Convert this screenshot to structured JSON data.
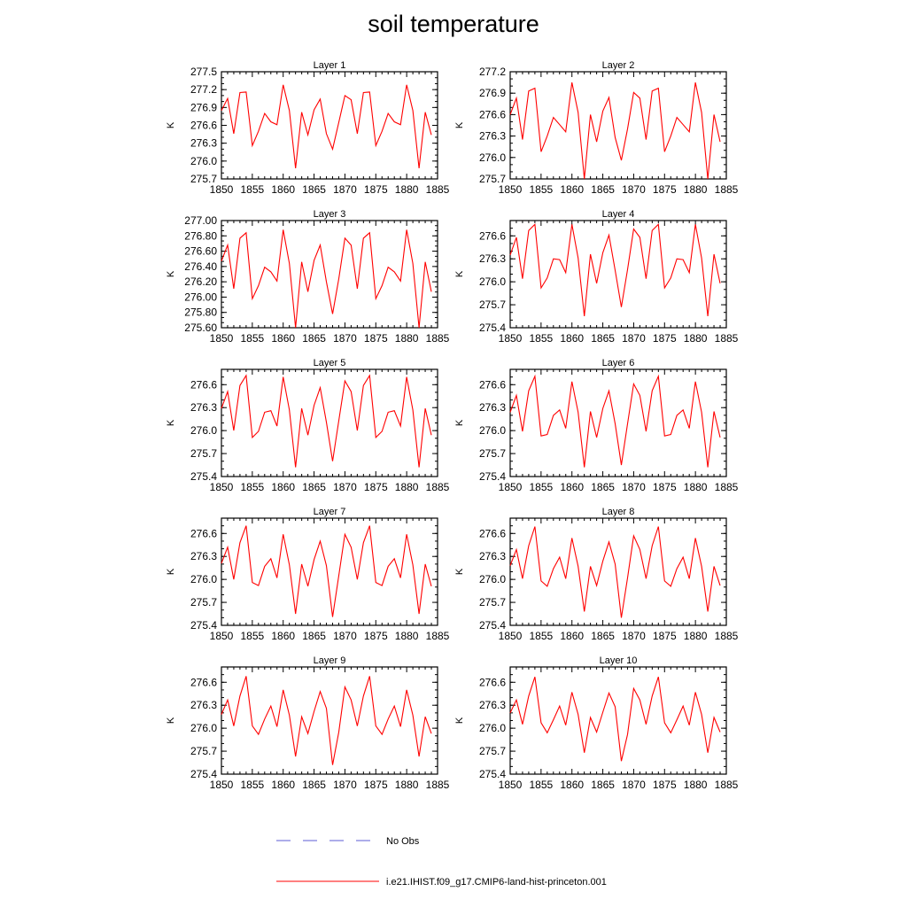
{
  "title": "soil temperature",
  "legend": {
    "items": [
      {
        "label": "No Obs",
        "color": "#5b5bd6",
        "style": "dashed"
      },
      {
        "label": "i.e21.IHIST.f09_g17.CMIP6-land-hist-princeton.001",
        "color": "#ff0000",
        "style": "solid"
      }
    ]
  },
  "chart_data": [
    {
      "type": "line",
      "title": "Layer 1",
      "ylabel": "K",
      "xlim": [
        1850,
        1885
      ],
      "ylim": [
        275.7,
        277.5
      ],
      "yticks": [
        "275.7",
        "276.0",
        "276.3",
        "276.6",
        "276.9",
        "277.2",
        "277.5"
      ],
      "xticks": [
        "1850",
        "1855",
        "1860",
        "1865",
        "1870",
        "1875",
        "1880",
        "1885"
      ],
      "series": [
        {
          "color": "#ff0000",
          "x": [
            1850,
            1851,
            1852,
            1853,
            1854,
            1855,
            1856,
            1857,
            1858,
            1859,
            1860,
            1861,
            1862,
            1863,
            1864,
            1865,
            1866,
            1867,
            1868,
            1869,
            1870,
            1871,
            1872,
            1873,
            1874,
            1875,
            1876,
            1877,
            1878,
            1879,
            1880,
            1881,
            1882,
            1883,
            1884
          ],
          "values": [
            276.85,
            277.05,
            276.46,
            277.15,
            277.16,
            276.26,
            276.5,
            276.8,
            276.66,
            276.61,
            277.28,
            276.85,
            275.88,
            276.82,
            276.44,
            276.86,
            277.04,
            276.46,
            276.2,
            276.65,
            277.1,
            277.03,
            276.46,
            277.15,
            277.16,
            276.26,
            276.5,
            276.8,
            276.66,
            276.61,
            277.28,
            276.85,
            275.88,
            276.82,
            276.44
          ]
        }
      ]
    },
    {
      "type": "line",
      "title": "Layer 2",
      "ylabel": "K",
      "xlim": [
        1850,
        1885
      ],
      "ylim": [
        275.7,
        277.2
      ],
      "yticks": [
        "275.7",
        "276.0",
        "276.3",
        "276.6",
        "276.9",
        "277.2"
      ],
      "xticks": [
        "1850",
        "1855",
        "1860",
        "1865",
        "1870",
        "1875",
        "1880",
        "1885"
      ],
      "series": [
        {
          "color": "#ff0000",
          "x": [
            1850,
            1851,
            1852,
            1853,
            1854,
            1855,
            1856,
            1857,
            1858,
            1859,
            1860,
            1861,
            1862,
            1863,
            1864,
            1865,
            1866,
            1867,
            1868,
            1869,
            1870,
            1871,
            1872,
            1873,
            1874,
            1875,
            1876,
            1877,
            1878,
            1879,
            1880,
            1881,
            1882,
            1883,
            1884
          ],
          "values": [
            276.6,
            276.83,
            276.25,
            276.93,
            276.97,
            276.08,
            276.3,
            276.56,
            276.46,
            276.36,
            277.05,
            276.63,
            275.7,
            276.6,
            276.22,
            276.65,
            276.84,
            276.28,
            275.96,
            276.4,
            276.91,
            276.83,
            276.25,
            276.93,
            276.97,
            276.08,
            276.3,
            276.56,
            276.46,
            276.36,
            277.05,
            276.63,
            275.7,
            276.6,
            276.22
          ]
        }
      ]
    },
    {
      "type": "line",
      "title": "Layer 3",
      "ylabel": "K",
      "xlim": [
        1850,
        1885
      ],
      "ylim": [
        275.6,
        277.0
      ],
      "yticks": [
        "275.60",
        "275.80",
        "276.00",
        "276.20",
        "276.40",
        "276.60",
        "276.80",
        "277.00"
      ],
      "xticks": [
        "1850",
        "1855",
        "1860",
        "1865",
        "1870",
        "1875",
        "1880",
        "1885"
      ],
      "series": [
        {
          "color": "#ff0000",
          "x": [
            1850,
            1851,
            1852,
            1853,
            1854,
            1855,
            1856,
            1857,
            1858,
            1859,
            1860,
            1861,
            1862,
            1863,
            1864,
            1865,
            1866,
            1867,
            1868,
            1869,
            1870,
            1871,
            1872,
            1873,
            1874,
            1875,
            1876,
            1877,
            1878,
            1879,
            1880,
            1881,
            1882,
            1883,
            1884
          ],
          "values": [
            276.47,
            276.68,
            276.11,
            276.77,
            276.84,
            275.98,
            276.15,
            276.39,
            276.33,
            276.21,
            276.88,
            276.44,
            275.6,
            276.46,
            276.07,
            276.48,
            276.68,
            276.2,
            275.78,
            276.24,
            276.77,
            276.68,
            276.11,
            276.77,
            276.84,
            275.98,
            276.15,
            276.39,
            276.33,
            276.21,
            276.88,
            276.44,
            275.6,
            276.46,
            276.07
          ]
        }
      ]
    },
    {
      "type": "line",
      "title": "Layer 4",
      "ylabel": "K",
      "xlim": [
        1850,
        1885
      ],
      "ylim": [
        275.4,
        276.8
      ],
      "yticks": [
        "275.4",
        "275.7",
        "276.0",
        "276.3",
        "276.6"
      ],
      "xticks": [
        "1850",
        "1855",
        "1860",
        "1865",
        "1870",
        "1875",
        "1880",
        "1885"
      ],
      "series": [
        {
          "color": "#ff0000",
          "x": [
            1850,
            1851,
            1852,
            1853,
            1854,
            1855,
            1856,
            1857,
            1858,
            1859,
            1860,
            1861,
            1862,
            1863,
            1864,
            1865,
            1866,
            1867,
            1868,
            1869,
            1870,
            1871,
            1872,
            1873,
            1874,
            1875,
            1876,
            1877,
            1878,
            1879,
            1880,
            1881,
            1882,
            1883,
            1884
          ],
          "values": [
            276.35,
            276.58,
            276.04,
            276.67,
            276.75,
            275.92,
            276.05,
            276.3,
            276.29,
            276.12,
            276.75,
            276.31,
            275.55,
            276.36,
            275.98,
            276.38,
            276.61,
            276.15,
            275.67,
            276.16,
            276.69,
            276.58,
            276.04,
            276.67,
            276.75,
            275.92,
            276.05,
            276.3,
            276.29,
            276.12,
            276.75,
            276.31,
            275.55,
            276.36,
            275.98
          ]
        }
      ]
    },
    {
      "type": "line",
      "title": "Layer 5",
      "ylabel": "K",
      "xlim": [
        1850,
        1885
      ],
      "ylim": [
        275.4,
        276.8
      ],
      "yticks": [
        "275.4",
        "275.7",
        "276.0",
        "276.3",
        "276.6"
      ],
      "xticks": [
        "1850",
        "1855",
        "1860",
        "1865",
        "1870",
        "1875",
        "1880",
        "1885"
      ],
      "series": [
        {
          "color": "#ff0000",
          "x": [
            1850,
            1851,
            1852,
            1853,
            1854,
            1855,
            1856,
            1857,
            1858,
            1859,
            1860,
            1861,
            1862,
            1863,
            1864,
            1865,
            1866,
            1867,
            1868,
            1869,
            1870,
            1871,
            1872,
            1873,
            1874,
            1875,
            1876,
            1877,
            1878,
            1879,
            1880,
            1881,
            1882,
            1883,
            1884
          ],
          "values": [
            276.29,
            276.51,
            276.0,
            276.59,
            276.72,
            275.91,
            275.99,
            276.24,
            276.26,
            276.06,
            276.7,
            276.27,
            275.52,
            276.29,
            275.94,
            276.33,
            276.56,
            276.11,
            275.6,
            276.13,
            276.65,
            276.51,
            276.0,
            276.59,
            276.72,
            275.91,
            275.99,
            276.24,
            276.26,
            276.06,
            276.7,
            276.27,
            275.52,
            276.29,
            275.94
          ]
        }
      ]
    },
    {
      "type": "line",
      "title": "Layer 6",
      "ylabel": "K",
      "xlim": [
        1850,
        1885
      ],
      "ylim": [
        275.4,
        276.8
      ],
      "yticks": [
        "275.4",
        "275.7",
        "276.0",
        "276.3",
        "276.6"
      ],
      "xticks": [
        "1850",
        "1855",
        "1860",
        "1865",
        "1870",
        "1875",
        "1880",
        "1885"
      ],
      "series": [
        {
          "color": "#ff0000",
          "x": [
            1850,
            1851,
            1852,
            1853,
            1854,
            1855,
            1856,
            1857,
            1858,
            1859,
            1860,
            1861,
            1862,
            1863,
            1864,
            1865,
            1866,
            1867,
            1868,
            1869,
            1870,
            1871,
            1872,
            1873,
            1874,
            1875,
            1876,
            1877,
            1878,
            1879,
            1880,
            1881,
            1882,
            1883,
            1884
          ],
          "values": [
            276.24,
            276.46,
            275.99,
            276.52,
            276.71,
            275.93,
            275.95,
            276.2,
            276.27,
            276.03,
            276.64,
            276.24,
            275.52,
            276.25,
            275.91,
            276.29,
            276.52,
            276.09,
            275.55,
            276.09,
            276.61,
            276.46,
            275.99,
            276.52,
            276.71,
            275.93,
            275.95,
            276.2,
            276.27,
            276.03,
            276.64,
            276.24,
            275.52,
            276.25,
            275.91
          ]
        }
      ]
    },
    {
      "type": "line",
      "title": "Layer 7",
      "ylabel": "K",
      "xlim": [
        1850,
        1885
      ],
      "ylim": [
        275.4,
        276.8
      ],
      "yticks": [
        "275.4",
        "275.7",
        "276.0",
        "276.3",
        "276.6"
      ],
      "xticks": [
        "1850",
        "1855",
        "1860",
        "1865",
        "1870",
        "1875",
        "1880",
        "1885"
      ],
      "series": [
        {
          "color": "#ff0000",
          "x": [
            1850,
            1851,
            1852,
            1853,
            1854,
            1855,
            1856,
            1857,
            1858,
            1859,
            1860,
            1861,
            1862,
            1863,
            1864,
            1865,
            1866,
            1867,
            1868,
            1869,
            1870,
            1871,
            1872,
            1873,
            1874,
            1875,
            1876,
            1877,
            1878,
            1879,
            1880,
            1881,
            1882,
            1883,
            1884
          ],
          "values": [
            276.21,
            276.42,
            276.0,
            276.48,
            276.7,
            275.96,
            275.92,
            276.17,
            276.27,
            276.02,
            276.59,
            276.19,
            275.55,
            276.2,
            275.91,
            276.26,
            276.5,
            276.18,
            275.51,
            276.05,
            276.59,
            276.42,
            276.0,
            276.48,
            276.7,
            275.96,
            275.92,
            276.17,
            276.27,
            276.02,
            276.59,
            276.19,
            275.55,
            276.2,
            275.91
          ]
        }
      ]
    },
    {
      "type": "line",
      "title": "Layer 8",
      "ylabel": "K",
      "xlim": [
        1850,
        1885
      ],
      "ylim": [
        275.4,
        276.8
      ],
      "yticks": [
        "275.4",
        "275.7",
        "276.0",
        "276.3",
        "276.6"
      ],
      "xticks": [
        "1850",
        "1855",
        "1860",
        "1865",
        "1870",
        "1875",
        "1880",
        "1885"
      ],
      "series": [
        {
          "color": "#ff0000",
          "x": [
            1850,
            1851,
            1852,
            1853,
            1854,
            1855,
            1856,
            1857,
            1858,
            1859,
            1860,
            1861,
            1862,
            1863,
            1864,
            1865,
            1866,
            1867,
            1868,
            1869,
            1870,
            1871,
            1872,
            1873,
            1874,
            1875,
            1876,
            1877,
            1878,
            1879,
            1880,
            1881,
            1882,
            1883,
            1884
          ],
          "values": [
            276.18,
            276.39,
            276.01,
            276.44,
            276.69,
            275.98,
            275.91,
            276.14,
            276.29,
            276.01,
            276.54,
            276.17,
            275.58,
            276.17,
            275.92,
            276.24,
            276.49,
            276.2,
            275.5,
            276.02,
            276.57,
            276.39,
            276.01,
            276.44,
            276.69,
            275.98,
            275.91,
            276.14,
            276.29,
            276.01,
            276.54,
            276.17,
            275.58,
            276.17,
            275.92
          ]
        }
      ]
    },
    {
      "type": "line",
      "title": "Layer 9",
      "ylabel": "K",
      "xlim": [
        1850,
        1885
      ],
      "ylim": [
        275.4,
        276.8
      ],
      "yticks": [
        "275.4",
        "275.7",
        "276.0",
        "276.3",
        "276.6"
      ],
      "xticks": [
        "1850",
        "1855",
        "1860",
        "1865",
        "1870",
        "1875",
        "1880",
        "1885"
      ],
      "series": [
        {
          "color": "#ff0000",
          "x": [
            1850,
            1851,
            1852,
            1853,
            1854,
            1855,
            1856,
            1857,
            1858,
            1859,
            1860,
            1861,
            1862,
            1863,
            1864,
            1865,
            1866,
            1867,
            1868,
            1869,
            1870,
            1871,
            1872,
            1873,
            1874,
            1875,
            1876,
            1877,
            1878,
            1879,
            1880,
            1881,
            1882,
            1883,
            1884
          ],
          "values": [
            276.18,
            276.37,
            276.03,
            276.42,
            276.68,
            276.03,
            275.92,
            276.12,
            276.29,
            276.02,
            276.5,
            276.17,
            275.63,
            276.15,
            275.93,
            276.22,
            276.48,
            276.26,
            275.52,
            275.95,
            276.54,
            276.37,
            276.03,
            276.42,
            276.68,
            276.03,
            275.92,
            276.12,
            276.29,
            276.02,
            276.5,
            276.17,
            275.63,
            276.15,
            275.93
          ]
        }
      ]
    },
    {
      "type": "line",
      "title": "Layer 10",
      "ylabel": "K",
      "xlim": [
        1850,
        1885
      ],
      "ylim": [
        275.4,
        276.8
      ],
      "yticks": [
        "275.4",
        "275.7",
        "276.0",
        "276.3",
        "276.6"
      ],
      "xticks": [
        "1850",
        "1855",
        "1860",
        "1865",
        "1870",
        "1875",
        "1880",
        "1885"
      ],
      "series": [
        {
          "color": "#ff0000",
          "x": [
            1850,
            1851,
            1852,
            1853,
            1854,
            1855,
            1856,
            1857,
            1858,
            1859,
            1860,
            1861,
            1862,
            1863,
            1864,
            1865,
            1866,
            1867,
            1868,
            1869,
            1870,
            1871,
            1872,
            1873,
            1874,
            1875,
            1876,
            1877,
            1878,
            1879,
            1880,
            1881,
            1882,
            1883,
            1884
          ],
          "values": [
            276.2,
            276.37,
            276.05,
            276.42,
            276.67,
            276.07,
            275.94,
            276.11,
            276.29,
            276.04,
            276.47,
            276.18,
            275.68,
            276.14,
            275.95,
            276.21,
            276.46,
            276.28,
            275.57,
            275.92,
            276.52,
            276.37,
            276.05,
            276.42,
            276.67,
            276.07,
            275.94,
            276.11,
            276.29,
            276.04,
            276.47,
            276.18,
            275.68,
            276.14,
            275.95
          ]
        }
      ]
    }
  ]
}
